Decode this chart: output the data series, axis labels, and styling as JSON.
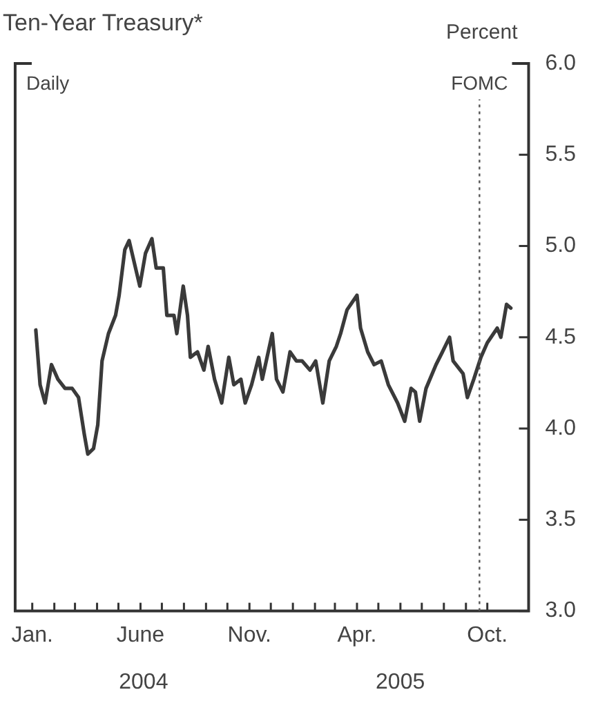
{
  "chart_data": {
    "type": "line",
    "title": "Ten-Year Treasury*",
    "ylabel": "Percent",
    "annotations": [
      "Daily",
      "2004",
      "2005"
    ],
    "x": [
      "2004-01-06",
      "2004-01-12",
      "2004-01-19",
      "2004-01-28",
      "2004-02-06",
      "2004-02-16",
      "2004-02-26",
      "2004-03-06",
      "2004-03-14",
      "2004-03-19",
      "2004-03-27",
      "2004-04-02",
      "2004-04-08",
      "2004-04-17",
      "2004-04-27",
      "2004-05-02",
      "2004-05-10",
      "2004-05-16",
      "2004-05-22",
      "2004-05-31",
      "2004-06-08",
      "2004-06-17",
      "2004-06-23",
      "2004-07-03",
      "2004-07-08",
      "2004-07-18",
      "2004-07-22",
      "2004-07-31",
      "2004-08-06",
      "2004-08-10",
      "2004-08-20",
      "2004-08-29",
      "2004-09-04",
      "2004-09-13",
      "2004-09-23",
      "2004-10-03",
      "2004-10-10",
      "2004-10-20",
      "2004-10-26",
      "2004-11-04",
      "2004-11-14",
      "2004-11-19",
      "2004-12-03",
      "2004-12-09",
      "2004-12-18",
      "2004-12-28",
      "2005-01-06",
      "2005-01-14",
      "2005-01-25",
      "2005-02-02",
      "2005-02-12",
      "2005-02-21",
      "2005-03-03",
      "2005-03-09",
      "2005-03-18",
      "2005-04-01",
      "2005-04-06",
      "2005-04-16",
      "2005-04-25",
      "2005-05-05",
      "2005-05-15",
      "2005-05-28",
      "2005-06-07",
      "2005-06-16",
      "2005-06-22",
      "2005-06-28",
      "2005-07-07",
      "2005-07-21",
      "2005-07-30",
      "2005-08-09",
      "2005-08-14",
      "2005-08-28",
      "2005-09-03",
      "2005-09-12",
      "2005-09-22",
      "2005-10-01",
      "2005-10-15",
      "2005-10-20",
      "2005-10-28",
      "2005-11-03"
    ],
    "series": [
      {
        "color": "#3a3a3a",
        "values": [
          4.54,
          4.24,
          4.14,
          4.35,
          4.27,
          4.22,
          4.22,
          4.17,
          3.97,
          3.86,
          3.89,
          4.02,
          4.37,
          4.52,
          4.62,
          4.73,
          4.98,
          5.03,
          4.93,
          4.78,
          4.96,
          5.04,
          4.88,
          4.88,
          4.62,
          4.62,
          4.52,
          4.78,
          4.62,
          4.39,
          4.42,
          4.32,
          4.45,
          4.27,
          4.14,
          4.39,
          4.24,
          4.27,
          4.14,
          4.24,
          4.39,
          4.27,
          4.52,
          4.27,
          4.2,
          4.42,
          4.37,
          4.37,
          4.32,
          4.37,
          4.14,
          4.37,
          4.45,
          4.52,
          4.65,
          4.73,
          4.55,
          4.42,
          4.35,
          4.37,
          4.24,
          4.14,
          4.04,
          4.22,
          4.2,
          4.04,
          4.22,
          4.35,
          4.42,
          4.5,
          4.37,
          4.3,
          4.17,
          4.27,
          4.39,
          4.47,
          4.55,
          4.5,
          4.68,
          4.66
        ]
      }
    ],
    "xlim": [
      "2003-12-08",
      "2005-11-28"
    ],
    "xticks": [
      {
        "value": "2004-01",
        "label": "Jan."
      },
      {
        "value": "2004-02",
        "label": null
      },
      {
        "value": "2004-03",
        "label": null
      },
      {
        "value": "2004-04",
        "label": null
      },
      {
        "value": "2004-05",
        "label": null
      },
      {
        "value": "2004-06",
        "label": "June"
      },
      {
        "value": "2004-07",
        "label": null
      },
      {
        "value": "2004-08",
        "label": null
      },
      {
        "value": "2004-09",
        "label": null
      },
      {
        "value": "2004-10",
        "label": null
      },
      {
        "value": "2004-11",
        "label": "Nov."
      },
      {
        "value": "2004-12",
        "label": null
      },
      {
        "value": "2005-01",
        "label": null
      },
      {
        "value": "2005-02",
        "label": null
      },
      {
        "value": "2005-03",
        "label": null
      },
      {
        "value": "2005-04",
        "label": "Apr."
      },
      {
        "value": "2005-05",
        "label": null
      },
      {
        "value": "2005-06",
        "label": null
      },
      {
        "value": "2005-07",
        "label": null
      },
      {
        "value": "2005-08",
        "label": null
      },
      {
        "value": "2005-09",
        "label": null
      },
      {
        "value": "2005-10",
        "label": "Oct."
      }
    ],
    "ylim": [
      3,
      6
    ],
    "yticks": [
      {
        "value": 3,
        "label": "3.0"
      },
      {
        "value": 3.5,
        "label": "3.5"
      },
      {
        "value": 4,
        "label": "4.0"
      },
      {
        "value": 4.5,
        "label": "4.5"
      },
      {
        "value": 5,
        "label": "5.0"
      },
      {
        "value": 5.5,
        "label": "5.5"
      },
      {
        "value": 6,
        "label": "6.0"
      }
    ],
    "ref_lines": [
      {
        "axis": "x",
        "value": "2005-09-20",
        "label": "FOMC",
        "color": "#555555",
        "line_style": "dotted"
      }
    ],
    "grid": false,
    "legend": false,
    "marker": "none",
    "line_style": "solid"
  }
}
